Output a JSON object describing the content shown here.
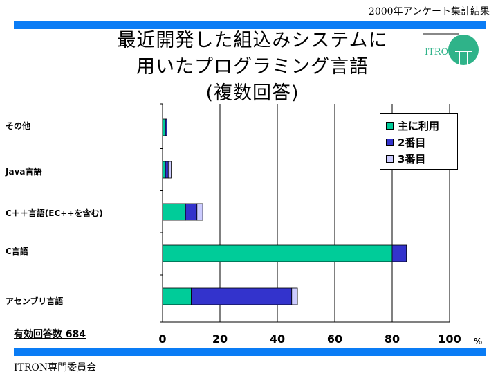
{
  "header_note": "2000年アンケート集計結果",
  "title_lines": [
    "最近開発した組込みシステムに",
    "用いたプログラミング言語",
    "(複数回答)"
  ],
  "logo_text": "ITRON",
  "respondents_label": "有効回答数 684",
  "footer": "ITRON専門委員会",
  "colors": {
    "accent_bar": "#0a7cf5",
    "primary": "#00cc99",
    "second": "#3333cc",
    "third": "#ccccff"
  },
  "chart_data": {
    "type": "bar",
    "orientation": "horizontal",
    "stacked": true,
    "title": "最近開発した組込みシステムに用いたプログラミング言語(複数回答)",
    "categories": [
      "その他",
      "Java言語",
      "C＋＋言語(EC++を含む)",
      "C言語",
      "アセンブリ言語"
    ],
    "series": [
      {
        "name": "主に利用",
        "values": [
          1,
          1,
          8,
          80,
          10
        ]
      },
      {
        "name": "2番目",
        "values": [
          0.5,
          1,
          4,
          5,
          35
        ]
      },
      {
        "name": "3番目",
        "values": [
          0,
          1,
          2,
          0,
          2
        ]
      }
    ],
    "xlabel": "%",
    "xlim": [
      0,
      100
    ],
    "xticks": [
      "0",
      "20",
      "40",
      "60",
      "80",
      "100"
    ],
    "grid": true,
    "legend_position": "top-right"
  }
}
